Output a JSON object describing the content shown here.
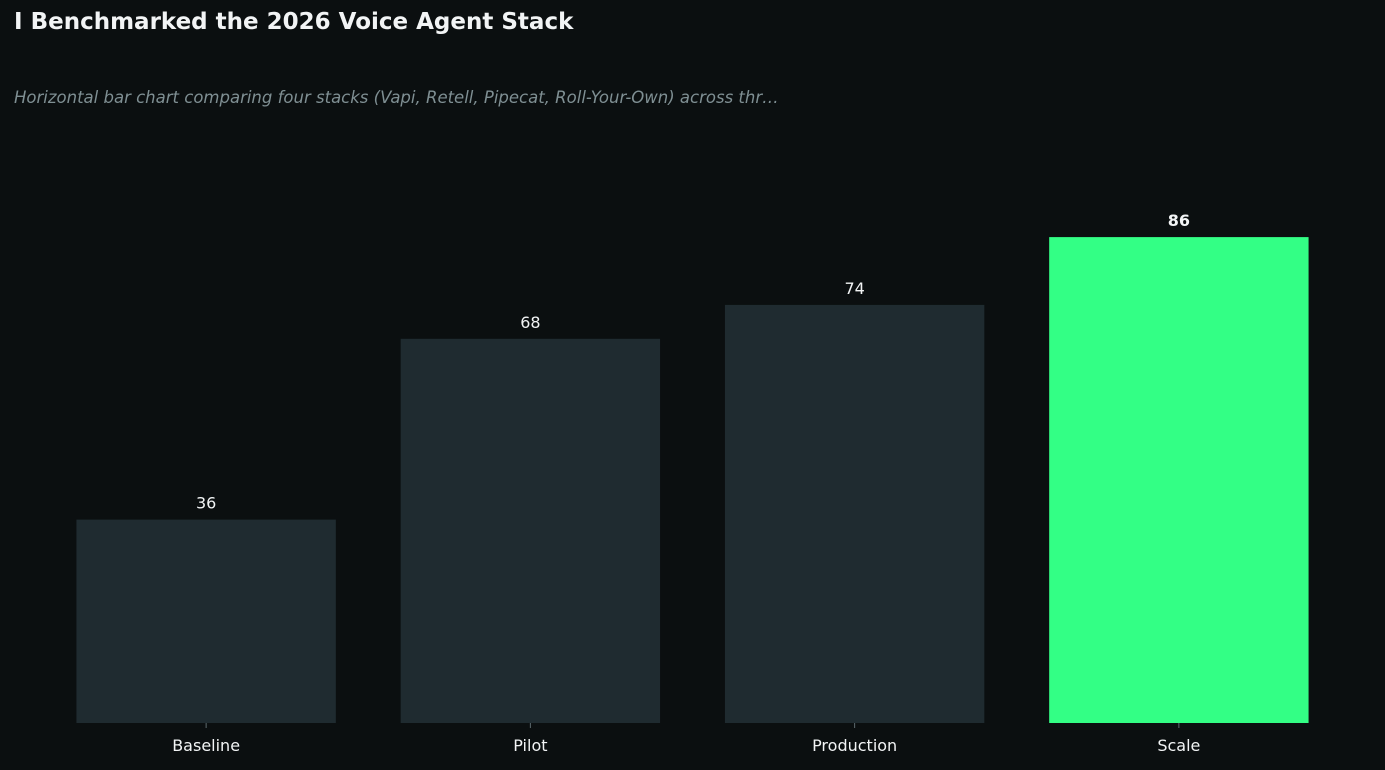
{
  "chart_data": {
    "type": "bar",
    "title": "I Benchmarked the 2026 Voice Agent Stack",
    "subtitle": "Horizontal bar chart comparing four stacks (Vapi, Retell, Pipecat, Roll-Your-Own) across thr…",
    "categories": [
      "Baseline",
      "Pilot",
      "Production",
      "Scale"
    ],
    "values": [
      36,
      68,
      74,
      86
    ],
    "value_labels": [
      "36",
      "68",
      "74",
      "86"
    ],
    "highlight_index": 3,
    "xlabel": "",
    "ylabel": "",
    "ylim": [
      0,
      100
    ],
    "grid": false,
    "legend": "none"
  },
  "colors": {
    "background": "#0b0f10",
    "bar": "#1f2b30",
    "highlight": "#33ff85",
    "text": "#f2f4f5",
    "muted": "#7f8f93",
    "tick": "#5d6a6e"
  }
}
